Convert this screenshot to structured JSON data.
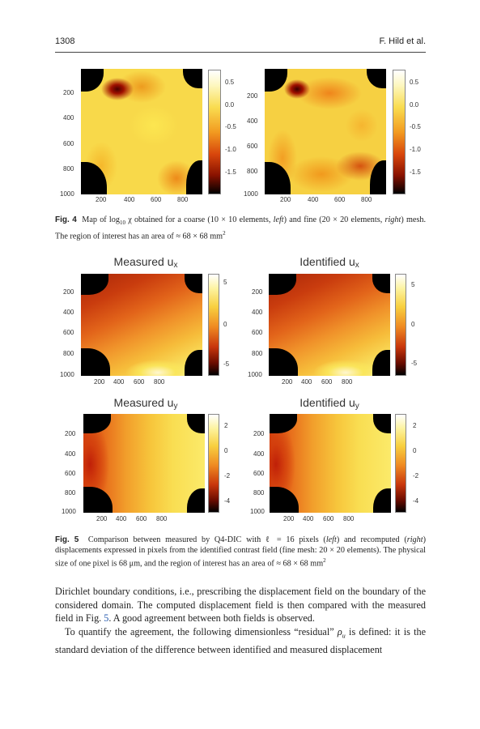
{
  "header": {
    "page_number": "1308",
    "authors": "F. Hild et al."
  },
  "fig4": {
    "caption_label": "Fig. 4",
    "caption_line1": "Map of log",
    "caption_sub": "10",
    "caption_line1b": " χ obtained for a coarse (10 × 10 elements, ",
    "caption_left": "left",
    "caption_line1c": ") and fine (20 × 20 elements,",
    "caption_right": "right",
    "caption_line2": ") mesh. The region of interest has an area of ≈ 68 × 68 mm",
    "caption_sup": "2",
    "y_ticks": [
      "200",
      "400",
      "600",
      "800",
      "1000"
    ],
    "x_ticks": [
      "200",
      "400",
      "600",
      "800"
    ],
    "colorbar_ticks": [
      "0.5",
      "0.0",
      "-0.5",
      "-1.0",
      "-1.5"
    ]
  },
  "fig5": {
    "titles": {
      "measured_ux": "Measured u",
      "ux_sub": "x",
      "identified_ux": "Identified u",
      "measured_uy": "Measured u",
      "uy_sub": "y",
      "identified_uy": "Identified u"
    },
    "y_ticks": [
      "200",
      "400",
      "600",
      "800",
      "1000"
    ],
    "x_ticks": [
      "200",
      "400",
      "600",
      "800"
    ],
    "colorbar_ux_ticks": [
      "5",
      "0",
      "-5"
    ],
    "colorbar_uy_ticks": [
      "2",
      "0",
      "-2",
      "-4"
    ],
    "caption_label": "Fig. 5",
    "caption_a": "Comparison between measured by Q4-DIC with ℓ = 16 pixels (",
    "caption_left": "left",
    "caption_b": ") and recomputed",
    "caption_right": "right",
    "caption_c": ") displacements expressed in pixels from the identified contrast field (fine mesh: 20 ×",
    "caption_d": "20 elements). The physical size of one pixel is 68 μm, and the region of interest has an area of",
    "caption_e": "≈ 68 × 68 mm",
    "caption_sup": "2"
  },
  "body": {
    "p1_a": "Dirichlet boundary conditions, i.e., prescribing the displacement field on the boundary of the considered domain. The computed displacement field is then compared with the measured field in Fig. ",
    "p1_link": "5",
    "p1_b": ". A good agreement between both fields is observed.",
    "p2_a": "To quantify the agreement, the following dimensionless “residual” ",
    "p2_sym": "ρ",
    "p2_sub": "u",
    "p2_b": " is defined: it is the standard deviation of the difference between identified and measured displacement"
  }
}
